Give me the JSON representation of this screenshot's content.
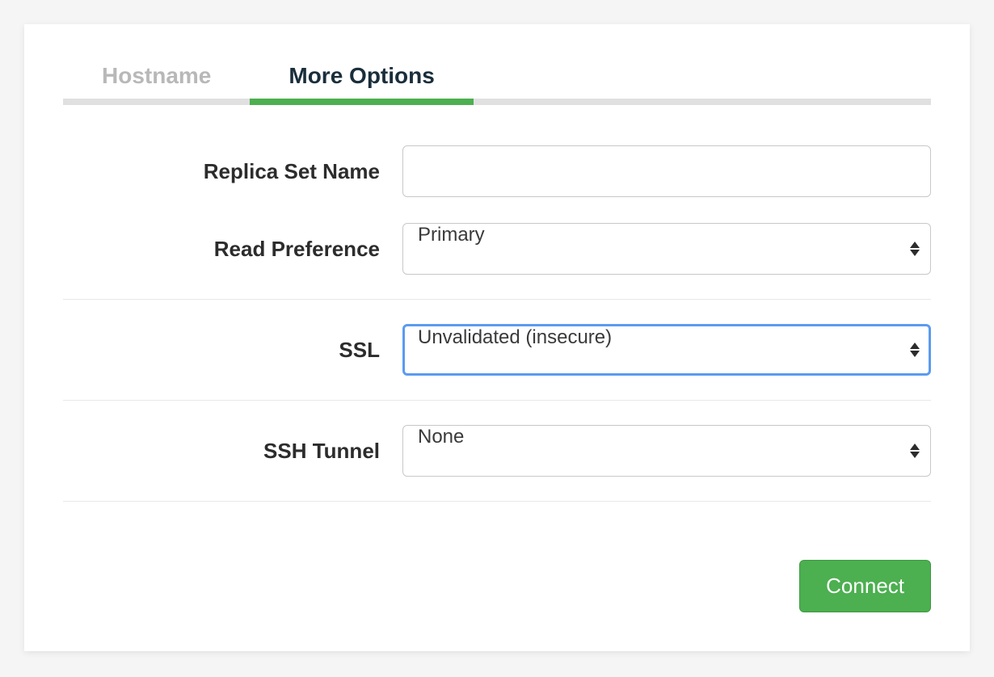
{
  "tabs": {
    "hostname": {
      "label": "Hostname",
      "active": false
    },
    "more_options": {
      "label": "More Options",
      "active": true
    }
  },
  "form": {
    "replica_set": {
      "label": "Replica Set Name",
      "value": ""
    },
    "read_preference": {
      "label": "Read Preference",
      "value": "Primary"
    },
    "ssl": {
      "label": "SSL",
      "value": "Unvalidated (insecure)",
      "focused": true
    },
    "ssh_tunnel": {
      "label": "SSH Tunnel",
      "value": "None"
    }
  },
  "buttons": {
    "connect": "Connect"
  },
  "colors": {
    "accent_green": "#4caf50",
    "focus_blue": "#5b9bf0",
    "background": "#f5f5f5",
    "panel_bg": "#ffffff",
    "text_dark": "#2c2c2c",
    "text_muted": "#b8b8b8",
    "border": "#c8c8c8",
    "divider": "#e8e8e8",
    "tab_underline": "#e0e0e0"
  }
}
